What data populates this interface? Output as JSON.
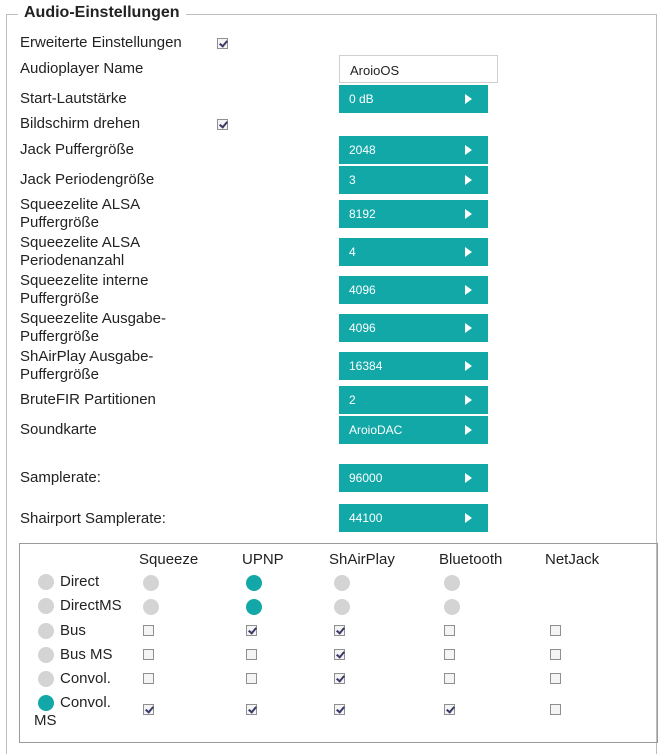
{
  "title": "Audio-Einstellungen",
  "colors": {
    "accent": "#12a8a8",
    "radio_off": "#d4d4d4"
  },
  "labels": {
    "advanced": "Erweiterte Einstellungen",
    "player_name": "Audioplayer Name",
    "start_volume": "Start-Lautstärke",
    "rotate_screen": "Bildschirm drehen",
    "jack_buffer": "Jack Puffergröße",
    "jack_period": "Jack Periodengröße",
    "sq_alsa_buffer": "Squeezelite ALSA Puffergröße",
    "sq_alsa_period": "Squeezelite ALSA Periodenanzahl",
    "sq_internal": "Squeezelite interne Puffergröße",
    "sq_output": "Squeezelite Ausgabe-Puffergröße",
    "shairplay_output": "ShAirPlay Ausgabe-Puffergröße",
    "brutefir": "BruteFIR Partitionen",
    "soundcard": "Soundkarte",
    "samplerate": "Samplerate:",
    "shairport_samplerate": "Shairport Samplerate:"
  },
  "checks": {
    "advanced": true,
    "rotate_screen": true
  },
  "values": {
    "player_name": "AroioOS",
    "start_volume": "0 dB",
    "jack_buffer": "2048",
    "jack_period": "3",
    "sq_alsa_buffer": "8192",
    "sq_alsa_period": "4",
    "sq_internal": "4096",
    "sq_output": "4096",
    "shairplay_output": "16384",
    "brutefir": "2",
    "soundcard": "AroioDAC",
    "samplerate": "96000",
    "shairport_samplerate": "44100"
  },
  "matrix": {
    "columns": [
      "Squeeze",
      "UPNP",
      "ShAirPlay",
      "Bluetooth",
      "NetJack"
    ],
    "rows": [
      {
        "label": "Direct",
        "active": false,
        "cells": [
          "radio",
          "radio-on",
          "radio",
          "radio",
          "none"
        ]
      },
      {
        "label": "DirectMS",
        "active": false,
        "cells": [
          "radio",
          "radio-on",
          "radio",
          "radio",
          "none"
        ]
      },
      {
        "label": "Bus",
        "active": false,
        "cells": [
          "cb",
          "cb-on",
          "cb-on",
          "cb",
          "cb"
        ]
      },
      {
        "label": "Bus MS",
        "active": false,
        "cells": [
          "cb",
          "cb",
          "cb-on",
          "cb",
          "cb"
        ]
      },
      {
        "label": "Convol.",
        "active": false,
        "cells": [
          "cb",
          "cb",
          "cb-on",
          "cb",
          "cb"
        ]
      },
      {
        "label": "Convol. MS",
        "label_line1": "Convol.",
        "label_line2": "MS",
        "active": true,
        "cells": [
          "cb-on",
          "cb-on",
          "cb-on",
          "cb-on",
          "cb"
        ]
      }
    ]
  }
}
